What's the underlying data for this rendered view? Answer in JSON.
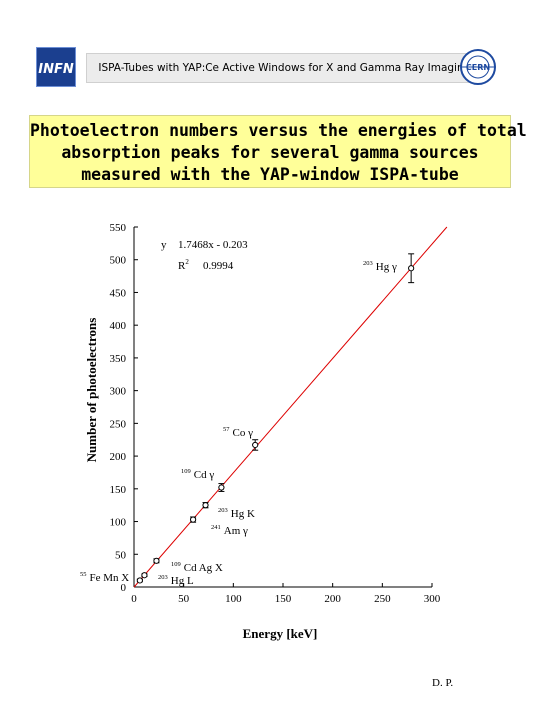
{
  "header": {
    "left_logo": "INFN",
    "right_logo": "CERN",
    "title": "ISPA-Tubes with YAP:Ce Active Windows for X and Gamma Ray Imaging."
  },
  "title_lines": [
    "Photoelectron numbers versus the energies of total",
    "absorption peaks for several gamma sources",
    "measured with the YAP-window ISPA-tube"
  ],
  "chart_data": {
    "type": "scatter",
    "xlabel": "Energy [keV]",
    "ylabel": "Number of photoelectrons",
    "xlim": [
      0,
      300
    ],
    "ylim": [
      0,
      550
    ],
    "x_ticks": [
      0,
      50,
      100,
      150,
      200,
      250,
      300
    ],
    "y_ticks": [
      0,
      50,
      100,
      150,
      200,
      250,
      300,
      350,
      400,
      450,
      500,
      550
    ],
    "fit": {
      "equation": "y = 1.7468x - 0.203",
      "r2_label": "R² = 0.9994",
      "y_label": "y",
      "r2_text": "R",
      "r2_sup": "2",
      "eq_text": "1.7468x - 0.203",
      "r2_value": "0.9994",
      "slope": 1.7468,
      "intercept": -0.203,
      "color": "#dd0000"
    },
    "points": [
      {
        "x": 5.9,
        "y": 10,
        "err": 2
      },
      {
        "x": 10.5,
        "y": 18,
        "err": 2
      },
      {
        "x": 22.6,
        "y": 40,
        "err": 3
      },
      {
        "x": 59.5,
        "y": 103,
        "err": 4
      },
      {
        "x": 72,
        "y": 125,
        "err": 4
      },
      {
        "x": 88,
        "y": 152,
        "err": 6
      },
      {
        "x": 122,
        "y": 217,
        "err": 8
      },
      {
        "x": 279,
        "y": 487,
        "err": 22
      }
    ],
    "labels": [
      {
        "sup": "203",
        "text": "Hg γ"
      },
      {
        "sup": "57",
        "text": "Co γ"
      },
      {
        "sup": "109",
        "text": "Cd γ"
      },
      {
        "sup": "203",
        "text": "Hg K"
      },
      {
        "sup": "241",
        "text": "Am γ"
      },
      {
        "sup": "109",
        "text": "Cd Ag X"
      },
      {
        "sup": "55",
        "text": "Fe Mn X"
      },
      {
        "sup": "203",
        "text": "Hg L"
      }
    ]
  },
  "footer": "D. P."
}
